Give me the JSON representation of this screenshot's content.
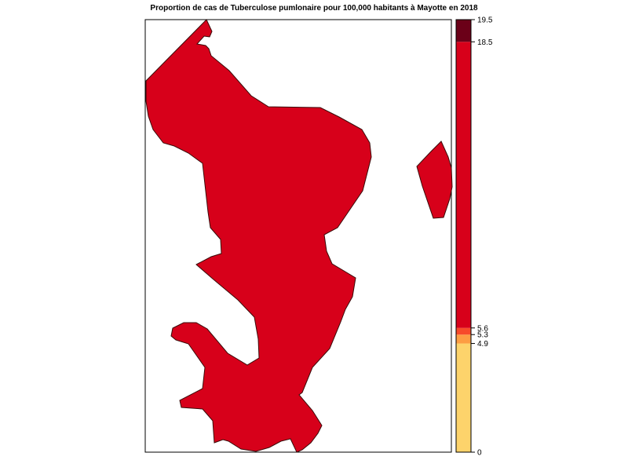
{
  "title": "Proportion de cas de Tuberculose pumlonaire pour 100,000 habitants à Mayotte en 2018",
  "map": {
    "region_fill": "#d7001a",
    "region_stroke": "#3a0a0a"
  },
  "legend": {
    "range": [
      0,
      19.5
    ],
    "classes": [
      {
        "from": 0,
        "to": 4.9,
        "color": "#fdd36b"
      },
      {
        "from": 4.9,
        "to": 5.3,
        "color": "#fd9d43"
      },
      {
        "from": 5.3,
        "to": 5.6,
        "color": "#f74a2a"
      },
      {
        "from": 5.6,
        "to": 18.5,
        "color": "#d7001a"
      },
      {
        "from": 18.5,
        "to": 19.5,
        "color": "#6b0018"
      }
    ],
    "ticks": [
      "0",
      "4.9",
      "5.3",
      "5.6",
      "18.5",
      "19.5"
    ]
  }
}
